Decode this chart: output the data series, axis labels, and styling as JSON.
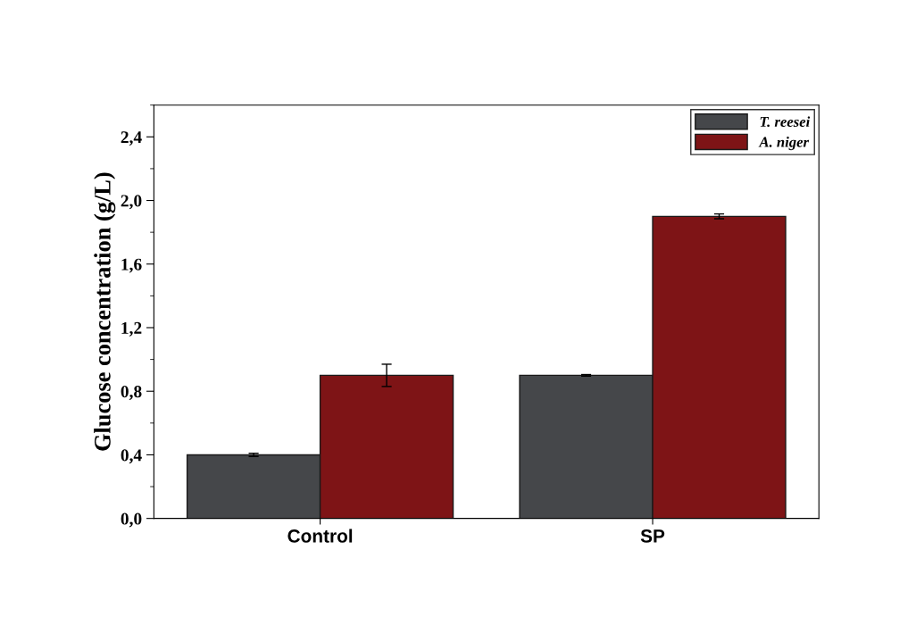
{
  "chart_data": {
    "type": "bar",
    "ylabel": "Glucose concentration (g/L)",
    "categories": [
      "Control",
      "SP"
    ],
    "series": [
      {
        "name": "T. reesei",
        "color": "#45474a",
        "values": [
          0.4,
          0.9
        ],
        "errors": [
          0.01,
          0.005
        ]
      },
      {
        "name": "A. niger",
        "color": "#7e1416",
        "values": [
          0.9,
          1.9
        ],
        "errors": [
          0.07,
          0.015
        ]
      }
    ],
    "ylim": [
      0,
      2.6
    ],
    "yticks": [
      {
        "value": 0,
        "label": "0,0"
      },
      {
        "value": 0.4,
        "label": "0,4"
      },
      {
        "value": 0.8,
        "label": "0,8"
      },
      {
        "value": 1.2,
        "label": "1,2"
      },
      {
        "value": 1.6,
        "label": "1,6"
      },
      {
        "value": 2.0,
        "label": "2,0"
      },
      {
        "value": 2.4,
        "label": "2,4"
      }
    ],
    "grid": false,
    "legend": "top right"
  }
}
